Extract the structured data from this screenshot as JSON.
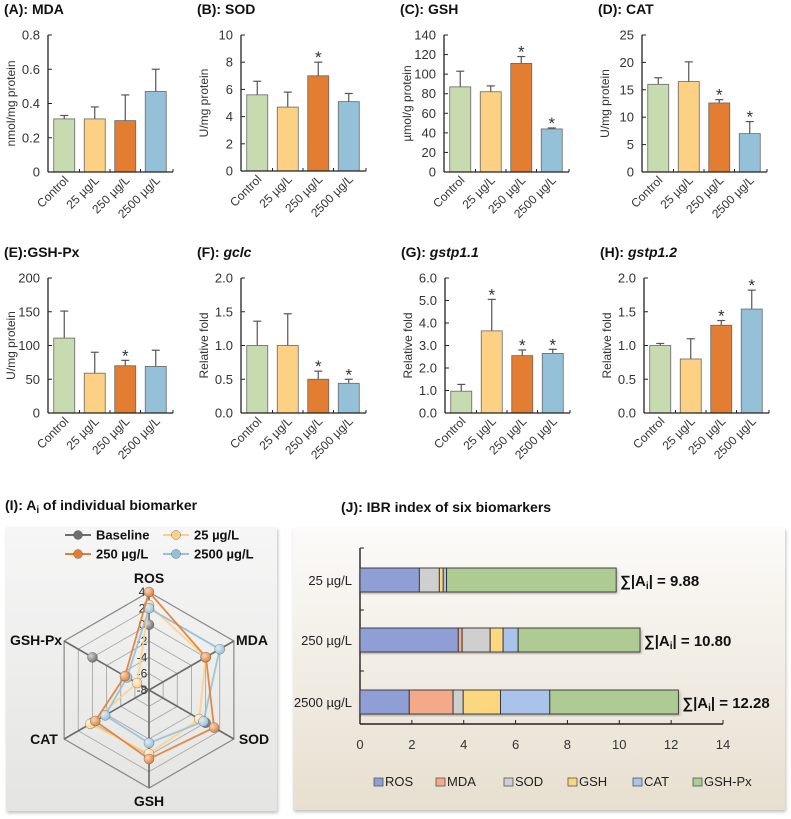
{
  "colors": {
    "control": "#c8dbb0",
    "c25": "#fdd184",
    "c250": "#e27d31",
    "c2500": "#95c1d8",
    "baseline": "#6e6e6e",
    "ibr": {
      "ROS": "#8f9fd6",
      "MDA": "#f4a98a",
      "SOD": "#cfcfcf",
      "GSH": "#fbd77f",
      "CAT": "#a9c3ea",
      "GSH-Px": "#aecb93"
    }
  },
  "chart_data": [
    {
      "id": "A",
      "type": "bar",
      "title_prefix": "(A): ",
      "title_name": "MDA",
      "title_italic": false,
      "ylabel": "nmol/mg protein",
      "categories": [
        "Control",
        "25 µg/L",
        "250 µg/L",
        "2500 µg/L"
      ],
      "values": [
        0.31,
        0.31,
        0.3,
        0.47
      ],
      "error_upper": [
        0.02,
        0.07,
        0.15,
        0.13
      ],
      "significant": [
        false,
        false,
        false,
        false
      ],
      "ylim": [
        0,
        0.8
      ],
      "yticks": [
        0,
        0.2,
        0.4,
        0.6,
        0.8
      ],
      "ytick_labels": [
        "0",
        "0.2",
        "0.4",
        "0.6",
        "0.8"
      ]
    },
    {
      "id": "B",
      "type": "bar",
      "title_prefix": "(B): ",
      "title_name": "SOD",
      "title_italic": false,
      "ylabel": "U/mg protein",
      "categories": [
        "Control",
        "25 µg/L",
        "250 µg/L",
        "2500 µg/L"
      ],
      "values": [
        5.6,
        4.7,
        7.0,
        5.1
      ],
      "error_upper": [
        1.0,
        1.1,
        1.0,
        0.6
      ],
      "significant": [
        false,
        false,
        true,
        false
      ],
      "ylim": [
        0,
        10
      ],
      "yticks": [
        0,
        2,
        4,
        6,
        8,
        10
      ],
      "ytick_labels": [
        "0",
        "2",
        "4",
        "6",
        "8",
        "10"
      ]
    },
    {
      "id": "C",
      "type": "bar",
      "title_prefix": "(C): ",
      "title_name": "GSH",
      "title_italic": false,
      "ylabel": "µmol/g protein",
      "categories": [
        "Control",
        "25 µg/L",
        "250 µg/L",
        "2500 µg/L"
      ],
      "values": [
        87,
        82,
        111,
        44
      ],
      "error_upper": [
        16,
        6,
        7,
        1
      ],
      "significant": [
        false,
        false,
        true,
        true
      ],
      "ylim": [
        0,
        140
      ],
      "yticks": [
        0,
        20,
        40,
        60,
        80,
        100,
        120,
        140
      ],
      "ytick_labels": [
        "0",
        "20",
        "40",
        "60",
        "80",
        "100",
        "120",
        "140"
      ]
    },
    {
      "id": "D",
      "type": "bar",
      "title_prefix": "(D): ",
      "title_name": "CAT",
      "title_italic": false,
      "ylabel": "U/mg protein",
      "categories": [
        "Control",
        "25 µg/L",
        "250 µg/L",
        "2500 µg/L"
      ],
      "values": [
        16.0,
        16.5,
        12.6,
        7.0
      ],
      "error_upper": [
        1.2,
        3.6,
        0.6,
        2.2
      ],
      "significant": [
        false,
        false,
        true,
        true
      ],
      "ylim": [
        0,
        25
      ],
      "yticks": [
        0,
        5,
        10,
        15,
        20,
        25
      ],
      "ytick_labels": [
        "0",
        "5",
        "10",
        "15",
        "20",
        "25"
      ]
    },
    {
      "id": "E",
      "type": "bar",
      "title_prefix": "(E):",
      "title_name": "GSH-Px",
      "title_italic": false,
      "ylabel": "U/mg protein",
      "categories": [
        "Control",
        "25 µg/L",
        "250 µg/L",
        "2500 µg/L"
      ],
      "values": [
        111,
        59,
        70,
        69
      ],
      "error_upper": [
        40,
        31,
        8,
        24
      ],
      "significant": [
        false,
        false,
        true,
        false
      ],
      "ylim": [
        0,
        200
      ],
      "yticks": [
        0,
        50,
        100,
        150,
        200
      ],
      "ytick_labels": [
        "0",
        "50",
        "100",
        "150",
        "200"
      ]
    },
    {
      "id": "F",
      "type": "bar",
      "title_prefix": "(F): ",
      "title_name": "gclc",
      "title_italic": true,
      "ylabel": "Relative fold",
      "categories": [
        "Control",
        "25 µg/L",
        "250 µg/L",
        "2500 µg/L"
      ],
      "values": [
        1.0,
        1.0,
        0.5,
        0.44
      ],
      "error_upper": [
        0.36,
        0.47,
        0.12,
        0.06
      ],
      "significant": [
        false,
        false,
        true,
        true
      ],
      "ylim": [
        0,
        2.0
      ],
      "yticks": [
        0,
        0.5,
        1.0,
        1.5,
        2.0
      ],
      "ytick_labels": [
        "0.0",
        "0.5",
        "1.0",
        "1.5",
        "2.0"
      ]
    },
    {
      "id": "G",
      "type": "bar",
      "title_prefix": "(G): ",
      "title_name": "gstp1.1",
      "title_italic": true,
      "ylabel": "Relative  fold",
      "categories": [
        "Control",
        "25 µg/L",
        "250 µg/L",
        "2500 µg/L"
      ],
      "values": [
        0.97,
        3.65,
        2.55,
        2.65
      ],
      "error_upper": [
        0.3,
        1.4,
        0.25,
        0.18
      ],
      "significant": [
        false,
        true,
        true,
        true
      ],
      "ylim": [
        0,
        6.0
      ],
      "yticks": [
        0,
        1,
        2,
        3,
        4,
        5,
        6
      ],
      "ytick_labels": [
        "0.0",
        "1.0",
        "2.0",
        "3.0",
        "4.0",
        "5.0",
        "6.0"
      ]
    },
    {
      "id": "H",
      "type": "bar",
      "title_prefix": "(H): ",
      "title_name": "gstp1.2",
      "title_italic": true,
      "ylabel": "Relative  fold",
      "categories": [
        "Control",
        "25 µg/L",
        "250 µg/L",
        "2500 µg/L"
      ],
      "values": [
        1.0,
        0.8,
        1.3,
        1.54
      ],
      "error_upper": [
        0.03,
        0.3,
        0.07,
        0.28
      ],
      "significant": [
        false,
        false,
        true,
        true
      ],
      "ylim": [
        0,
        2.0
      ],
      "yticks": [
        0,
        0.5,
        1.0,
        1.5,
        2.0
      ],
      "ytick_labels": [
        "0.0",
        "0.5",
        "1.0",
        "1.5",
        "2.0"
      ]
    },
    {
      "id": "I",
      "type": "radar",
      "title_prefix": "(I): A",
      "title_sub": "i",
      "title_suffix": " of individual biomarker",
      "axes": [
        "ROS",
        "MDA",
        "SOD",
        "GSH",
        "CAT",
        "GSH-Px"
      ],
      "rlim": [
        -8,
        4
      ],
      "rticks": [
        4,
        2,
        0,
        -2,
        -4,
        -6,
        -8
      ],
      "rtick_labels": [
        "4",
        "2",
        "0",
        "-2",
        "-4",
        "-6",
        "-8"
      ],
      "legend_position": "top",
      "series": [
        {
          "name": "Baseline",
          "key": "baseline",
          "values": [
            0,
            0,
            0,
            0,
            0,
            0
          ]
        },
        {
          "name": "25 µg/L",
          "key": "c25",
          "values": [
            2.4,
            0.0,
            -0.9,
            -0.2,
            0.3,
            -6.3
          ]
        },
        {
          "name": "250 µg/L",
          "key": "c250",
          "values": [
            4.0,
            0.05,
            1.2,
            0.45,
            -0.4,
            -4.6
          ]
        },
        {
          "name": "2500 µg/L",
          "key": "c2500",
          "values": [
            2.0,
            2.0,
            -0.3,
            -1.5,
            -1.8,
            -4.9
          ]
        }
      ]
    },
    {
      "id": "J",
      "type": "bar",
      "orientation": "horizontal-stacked",
      "title": "(J): IBR index of six biomarkers",
      "categories": [
        "25 µg/L",
        "250 µg/L",
        "2500 µg/L"
      ],
      "xlim": [
        0,
        14
      ],
      "xticks": [
        0,
        2,
        4,
        6,
        8,
        10,
        12,
        14
      ],
      "xtick_labels": [
        "0",
        "2",
        "4",
        "6",
        "8",
        "10",
        "12",
        "14"
      ],
      "legend_position": "bottom",
      "series": [
        {
          "name": "ROS",
          "values": [
            2.29,
            3.79,
            1.9
          ]
        },
        {
          "name": "MDA",
          "values": [
            0.0,
            0.15,
            1.69
          ]
        },
        {
          "name": "SOD",
          "values": [
            0.77,
            1.08,
            0.39
          ]
        },
        {
          "name": "GSH",
          "values": [
            0.15,
            0.5,
            1.44
          ]
        },
        {
          "name": "CAT",
          "values": [
            0.13,
            0.58,
            1.9
          ]
        },
        {
          "name": "GSH-Px",
          "values": [
            6.54,
            4.7,
            4.96
          ]
        }
      ],
      "sum_prefix": "∑|A",
      "sum_sub": "i",
      "sum_mid": "| = ",
      "totals": [
        "9.88",
        "10.80",
        "12.28"
      ]
    }
  ]
}
